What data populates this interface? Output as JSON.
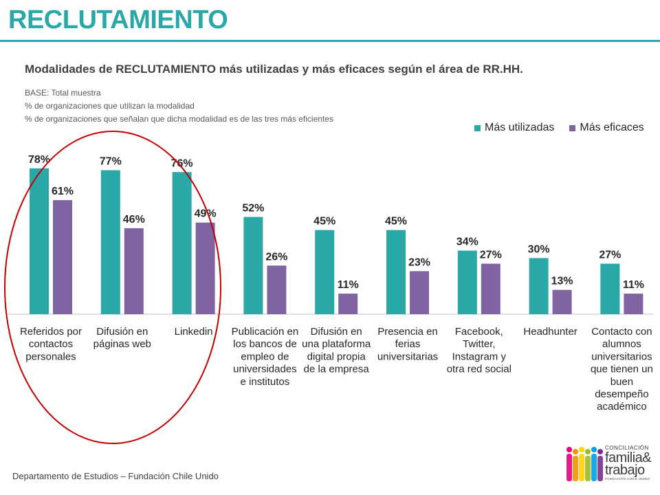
{
  "header": {
    "title": "RECLUTAMIENTO"
  },
  "chart_data": {
    "type": "bar",
    "title": "Modalidades de RECLUTAMIENTO más utilizadas y más eficaces según el área de RR.HH.",
    "notes": [
      "BASE:  Total muestra",
      "%  de organizaciones que utilizan la modalidad",
      "% de organizaciones que señalan que dicha modalidad es de las tres más eficientes"
    ],
    "categories": [
      "Referidos por contactos personales",
      "Difusión en páginas web",
      "Linkedin",
      "Publicación en los bancos de empleo de universidades e institutos",
      "Difusión en una plataforma digital propia de la empresa",
      "Presencia en ferias universitarias",
      "Facebook, Twitter, Instagram y otra red social",
      "Headhunter",
      "Contacto con alumnos universitarios que tienen un buen desempeño académico"
    ],
    "category_lines": [
      [
        "Referidos por",
        "contactos",
        "personales"
      ],
      [
        "Difusión en",
        "páginas web"
      ],
      [
        "Linkedin"
      ],
      [
        "Publicación en",
        "los bancos de",
        "empleo de",
        "universidades",
        "e institutos"
      ],
      [
        "Difusión en",
        "una plataforma",
        "digital propia",
        "de la empresa"
      ],
      [
        "Presencia en",
        "ferias",
        "universitarias"
      ],
      [
        "Facebook,",
        "Twitter,",
        "Instagram y",
        "otra red social"
      ],
      [
        "Headhunter"
      ],
      [
        "Contacto con",
        "alumnos",
        "universitarios",
        "que tienen un",
        "buen",
        "desempeño",
        "académico"
      ]
    ],
    "series": [
      {
        "name": "Más utilizadas",
        "color": "#2aa7a7",
        "values": [
          78,
          77,
          76,
          52,
          45,
          45,
          34,
          30,
          27
        ]
      },
      {
        "name": "Más eficaces",
        "color": "#8064a2",
        "values": [
          61,
          46,
          49,
          26,
          11,
          23,
          27,
          13,
          11
        ]
      }
    ],
    "value_suffix": "%",
    "ylim": [
      0,
      100
    ],
    "grid": false,
    "legend_position": "top-right",
    "highlight": {
      "shape": "ellipse",
      "color": "#c00000",
      "categories": [
        0,
        1,
        2
      ]
    }
  },
  "footer": {
    "text": "Departamento de Estudios – Fundación Chile Unido"
  },
  "logo": {
    "line1": "CONCILIACIÓN",
    "line2": "familia&",
    "line3": "trabajo",
    "line4": "FUNDACIÓN CHILE UNIDO",
    "colors": [
      "#e5007e",
      "#f39200",
      "#ffd500",
      "#95c11f",
      "#009fe3",
      "#7b2e8e"
    ]
  }
}
